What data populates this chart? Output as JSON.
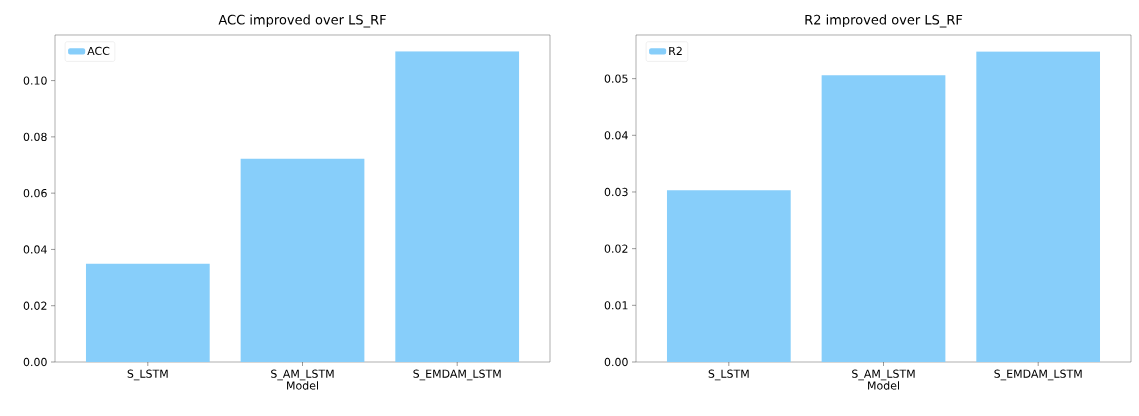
{
  "chart_data": [
    {
      "type": "bar",
      "title": "ACC improved over LS_RF",
      "xlabel": "Model",
      "categories": [
        "S_LSTM",
        "S_AM_LSTM",
        "S_EMDAM_LSTM"
      ],
      "series": [
        {
          "name": "ACC",
          "color": "#87cefa",
          "values": [
            0.0349,
            0.0722,
            0.1104
          ]
        }
      ],
      "ylim": [
        0,
        0.1162
      ],
      "yticks": [
        {
          "value": 0,
          "label": "0.00"
        },
        {
          "value": 0.02,
          "label": "0.02"
        },
        {
          "value": 0.04,
          "label": "0.04"
        },
        {
          "value": 0.06,
          "label": "0.06"
        },
        {
          "value": 0.08,
          "label": "0.08"
        },
        {
          "value": 0.1,
          "label": "0.10"
        }
      ],
      "legend": "top left"
    },
    {
      "type": "bar",
      "title": "R2 improved over LS_RF",
      "xlabel": "Model",
      "categories": [
        "S_LSTM",
        "S_AM_LSTM",
        "S_EMDAM_LSTM"
      ],
      "series": [
        {
          "name": "R2",
          "color": "#87cefa",
          "values": [
            0.0303,
            0.0506,
            0.0548
          ]
        }
      ],
      "ylim": [
        0,
        0.0577
      ],
      "yticks": [
        {
          "value": 0,
          "label": "0.00"
        },
        {
          "value": 0.01,
          "label": "0.01"
        },
        {
          "value": 0.02,
          "label": "0.02"
        },
        {
          "value": 0.03,
          "label": "0.03"
        },
        {
          "value": 0.04,
          "label": "0.04"
        },
        {
          "value": 0.05,
          "label": "0.05"
        }
      ],
      "legend": "top left"
    }
  ]
}
